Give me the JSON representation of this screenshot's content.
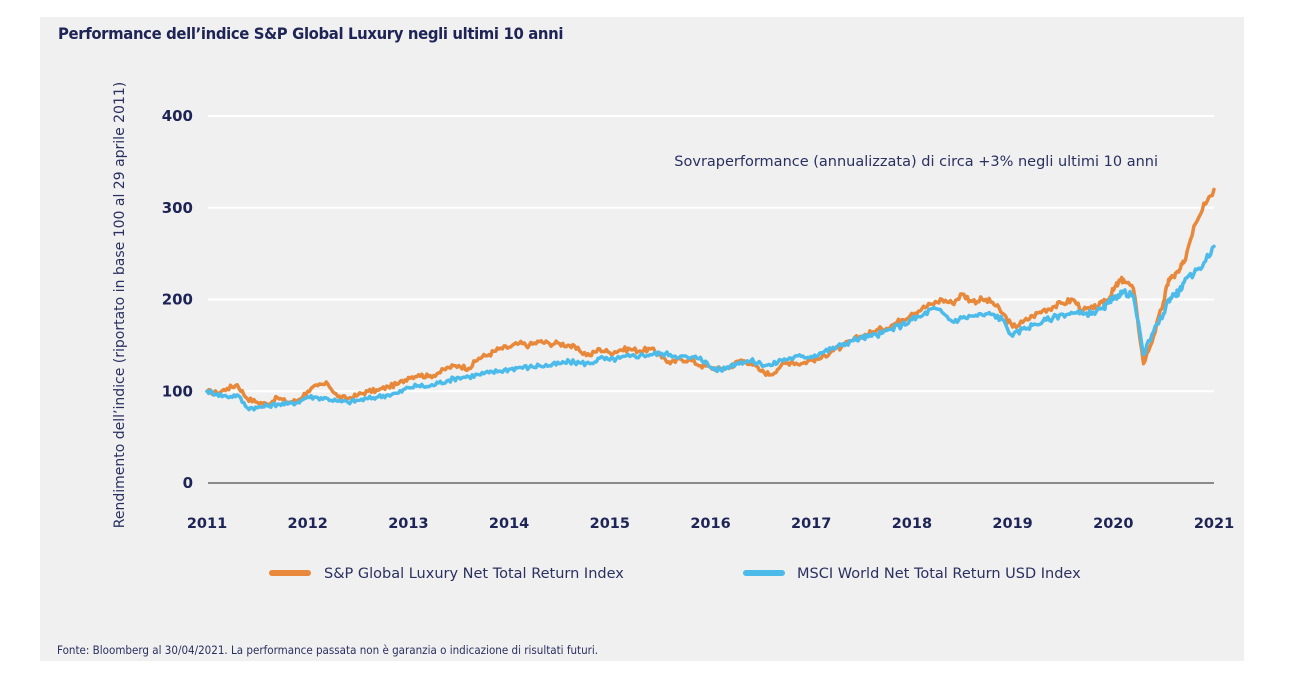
{
  "chart_data": {
    "type": "line",
    "title": "Performance dell’indice S&P Global Luxury negli ultimi 10 anni",
    "xlabel": "",
    "ylabel": "Rendimento dell’indice (riportato in base 100 al 29 aprile 2011)",
    "ylim": [
      0,
      400
    ],
    "yticks": [
      0,
      100,
      200,
      300,
      400
    ],
    "ytick_labels": [
      "0",
      "100",
      "200",
      "300",
      "400"
    ],
    "xlim": [
      2011,
      2021
    ],
    "xticks": [
      2011,
      2012,
      2013,
      2014,
      2015,
      2016,
      2017,
      2018,
      2019,
      2020,
      2021
    ],
    "xtick_labels": [
      "2011",
      "2012",
      "2013",
      "2014",
      "2015",
      "2016",
      "2017",
      "2018",
      "2019",
      "2020",
      "2021"
    ],
    "grid": "horizontal",
    "legend_position": "bottom",
    "annotation": "Sovraperformance (annualizzata) di circa +3% negli ultimi 10 anni",
    "series": [
      {
        "name": "S&P Global Luxury Net Total Return Index",
        "color": "#e8883a",
        "x": [
          2011.0,
          2011.1,
          2011.2,
          2011.3,
          2011.4,
          2011.5,
          2011.6,
          2011.7,
          2011.8,
          2011.9,
          2012.0,
          2012.1,
          2012.2,
          2012.3,
          2012.4,
          2012.5,
          2012.6,
          2012.7,
          2012.8,
          2012.9,
          2013.0,
          2013.1,
          2013.2,
          2013.3,
          2013.4,
          2013.5,
          2013.6,
          2013.7,
          2013.8,
          2013.9,
          2014.0,
          2014.1,
          2014.2,
          2014.3,
          2014.4,
          2014.5,
          2014.6,
          2014.7,
          2014.8,
          2014.9,
          2015.0,
          2015.1,
          2015.2,
          2015.3,
          2015.4,
          2015.5,
          2015.6,
          2015.7,
          2015.8,
          2015.9,
          2016.0,
          2016.1,
          2016.2,
          2016.3,
          2016.4,
          2016.5,
          2016.6,
          2016.7,
          2016.8,
          2016.9,
          2017.0,
          2017.1,
          2017.2,
          2017.3,
          2017.4,
          2017.5,
          2017.6,
          2017.7,
          2017.8,
          2017.9,
          2018.0,
          2018.1,
          2018.2,
          2018.3,
          2018.4,
          2018.5,
          2018.6,
          2018.7,
          2018.8,
          2018.9,
          2019.0,
          2019.1,
          2019.2,
          2019.3,
          2019.4,
          2019.5,
          2019.6,
          2019.7,
          2019.8,
          2019.9,
          2019.95,
          2020.0,
          2020.05,
          2020.1,
          2020.2,
          2020.3,
          2020.4,
          2020.5,
          2020.55,
          2020.6,
          2020.65,
          2020.7,
          2020.8,
          2020.9,
          2021.0
        ],
        "values": [
          100,
          98,
          103,
          107,
          92,
          88,
          86,
          93,
          88,
          90,
          100,
          106,
          108,
          94,
          92,
          96,
          100,
          101,
          105,
          108,
          115,
          118,
          116,
          120,
          126,
          128,
          125,
          136,
          140,
          146,
          148,
          152,
          150,
          154,
          152,
          152,
          150,
          144,
          139,
          146,
          142,
          145,
          146,
          144,
          146,
          140,
          130,
          135,
          134,
          128,
          126,
          124,
          127,
          134,
          131,
          122,
          118,
          128,
          132,
          130,
          134,
          136,
          144,
          148,
          155,
          160,
          164,
          168,
          172,
          178,
          185,
          190,
          195,
          200,
          196,
          206,
          198,
          200,
          197,
          185,
          170,
          175,
          182,
          188,
          192,
          196,
          200,
          188,
          190,
          196,
          200,
          210,
          218,
          222,
          212,
          130,
          160,
          198,
          222,
          225,
          230,
          240,
          280,
          305,
          320
        ]
      },
      {
        "name": "MSCI World Net Total Return USD Index",
        "color": "#4dbbea",
        "x": [
          2011.0,
          2011.1,
          2011.2,
          2011.3,
          2011.4,
          2011.5,
          2011.6,
          2011.7,
          2011.8,
          2011.9,
          2012.0,
          2012.1,
          2012.2,
          2012.3,
          2012.4,
          2012.5,
          2012.6,
          2012.7,
          2012.8,
          2012.9,
          2013.0,
          2013.1,
          2013.2,
          2013.3,
          2013.4,
          2013.5,
          2013.6,
          2013.7,
          2013.8,
          2013.9,
          2014.0,
          2014.1,
          2014.2,
          2014.3,
          2014.4,
          2014.5,
          2014.6,
          2014.7,
          2014.8,
          2014.9,
          2015.0,
          2015.1,
          2015.2,
          2015.3,
          2015.4,
          2015.5,
          2015.6,
          2015.7,
          2015.8,
          2015.9,
          2016.0,
          2016.1,
          2016.2,
          2016.3,
          2016.4,
          2016.5,
          2016.6,
          2016.7,
          2016.8,
          2016.9,
          2017.0,
          2017.1,
          2017.2,
          2017.3,
          2017.4,
          2017.5,
          2017.6,
          2017.7,
          2017.8,
          2017.9,
          2018.0,
          2018.1,
          2018.2,
          2018.3,
          2018.4,
          2018.5,
          2018.6,
          2018.7,
          2018.8,
          2018.9,
          2019.0,
          2019.1,
          2019.2,
          2019.3,
          2019.4,
          2019.5,
          2019.6,
          2019.7,
          2019.8,
          2019.9,
          2019.95,
          2020.0,
          2020.05,
          2020.1,
          2020.2,
          2020.3,
          2020.4,
          2020.5,
          2020.55,
          2020.6,
          2020.65,
          2020.7,
          2020.8,
          2020.9,
          2021.0
        ],
        "values": [
          100,
          97,
          94,
          96,
          82,
          82,
          84,
          86,
          86,
          88,
          94,
          93,
          92,
          89,
          88,
          90,
          92,
          94,
          96,
          98,
          104,
          106,
          105,
          109,
          112,
          115,
          116,
          118,
          120,
          122,
          124,
          126,
          126,
          128,
          128,
          130,
          132,
          131,
          130,
          136,
          134,
          136,
          138,
          139,
          140,
          141,
          140,
          138,
          136,
          137,
          126,
          123,
          128,
          132,
          133,
          130,
          128,
          134,
          136,
          138,
          138,
          142,
          146,
          150,
          155,
          158,
          160,
          163,
          168,
          172,
          178,
          182,
          190,
          186,
          176,
          180,
          182,
          183,
          184,
          178,
          160,
          168,
          172,
          176,
          180,
          184,
          185,
          184,
          186,
          190,
          196,
          200,
          205,
          208,
          204,
          140,
          165,
          185,
          200,
          205,
          208,
          218,
          228,
          240,
          258
        ]
      }
    ]
  },
  "source": "Fonte: Bloomberg al 30/04/2021. La performance passata non è garanzia o indicazione di risultati futuri."
}
